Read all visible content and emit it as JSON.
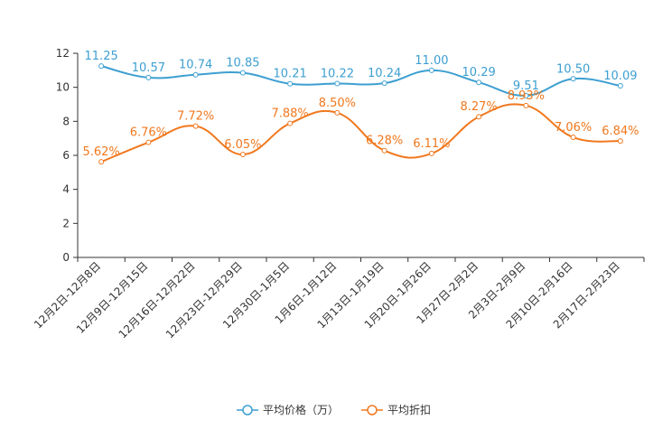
{
  "chart_data": {
    "type": "line",
    "title": "",
    "categories": [
      "12月2日-12月8日",
      "12月9日-12月15日",
      "12月16日-12月22日",
      "12月23日-12月29日",
      "12月30日-1月5日",
      "1月6日-1月12日",
      "1月13日-1月19日",
      "1月20日-1月26日",
      "1月27日-2月2日",
      "2月3日-2月9日",
      "2月10日-2月16日",
      "2月17日-2月23日"
    ],
    "ylim": [
      0,
      12
    ],
    "yticks": [
      "0",
      "2",
      "4",
      "6",
      "8",
      "10",
      "12"
    ],
    "series": [
      {
        "name": "平均价格（万）",
        "color": "#3d9fd1",
        "values": [
          11.25,
          10.57,
          10.74,
          10.85,
          10.21,
          10.22,
          10.24,
          11.0,
          10.29,
          9.51,
          10.5,
          10.09
        ],
        "labels": [
          "11.25",
          "10.57",
          "10.74",
          "10.85",
          "10.21",
          "10.22",
          "10.24",
          "11.00",
          "10.29",
          "9.51",
          "10.50",
          "10.09"
        ]
      },
      {
        "name": "平均折扣",
        "color": "#f0781e",
        "values": [
          5.62,
          6.76,
          7.72,
          6.05,
          7.88,
          8.5,
          6.28,
          6.11,
          8.27,
          8.93,
          7.06,
          6.84
        ],
        "labels": [
          "5.62%",
          "6.76%",
          "7.72%",
          "6.05%",
          "7.88%",
          "8.50%",
          "6.28%",
          "6.11%",
          "8.27%",
          "8.93%",
          "7.06%",
          "6.84%"
        ]
      }
    ],
    "legend_position": "bottom-center"
  }
}
